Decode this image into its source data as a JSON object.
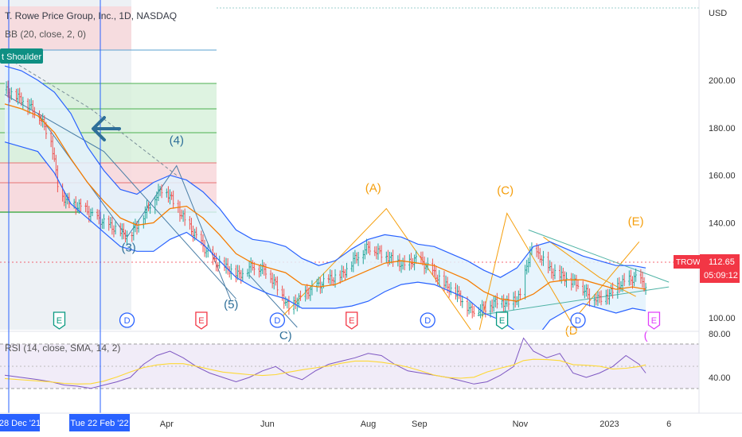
{
  "header": {
    "symbol_title": "T. Rowe Price Group, Inc., 1D, NASDAQ",
    "bb_label": "BB (20, close, 2, 0)",
    "pattern_badge": "t Shoulder"
  },
  "price_axis": {
    "currency": "USD",
    "ticks": [
      {
        "value": 200,
        "label": "200.00"
      },
      {
        "value": 180,
        "label": "180.00"
      },
      {
        "value": 160,
        "label": "160.00"
      },
      {
        "value": 140,
        "label": "140.00"
      },
      {
        "value": 120,
        "label": "120.00"
      },
      {
        "value": 100,
        "label": "100.00"
      }
    ],
    "last_price": {
      "ticker": "TROW",
      "price": "112.65",
      "countdown": "05:09:12"
    }
  },
  "rsi": {
    "label": "RSI (14, close, SMA, 14, 2)",
    "ticks": [
      {
        "value": 80,
        "label": "80.00"
      },
      {
        "value": 40,
        "label": "40.00"
      }
    ]
  },
  "time_axis": {
    "ticks": [
      {
        "label": "Apr",
        "day": 98
      },
      {
        "label": "Jun",
        "day": 159
      },
      {
        "label": "Aug",
        "day": 220
      },
      {
        "label": "Sep",
        "day": 251
      },
      {
        "label": "Nov",
        "day": 312
      },
      {
        "label": "2023",
        "day": 366
      },
      {
        "label": "6",
        "day": 402
      }
    ],
    "highlights": [
      {
        "label": "28 Dec '21",
        "day": 28
      },
      {
        "label": "Tue 22 Feb '22",
        "day": 53
      }
    ]
  },
  "events": [
    {
      "letter": "E",
      "type": "earnings",
      "color": "#089981",
      "day": 33
    },
    {
      "letter": "D",
      "type": "dividend",
      "color": "#2962ff",
      "day": 74
    },
    {
      "letter": "E",
      "type": "earnings",
      "color": "#f23645",
      "day": 119
    },
    {
      "letter": "D",
      "type": "dividend",
      "color": "#2962ff",
      "day": 165
    },
    {
      "letter": "E",
      "type": "earnings",
      "color": "#f23645",
      "day": 210
    },
    {
      "letter": "D",
      "type": "dividend",
      "color": "#2962ff",
      "day": 256
    },
    {
      "letter": "E",
      "type": "earnings",
      "color": "#089981",
      "day": 301
    },
    {
      "letter": "D",
      "type": "dividend",
      "color": "#2962ff",
      "day": 347
    },
    {
      "letter": "E",
      "type": "earnings",
      "color": "#e040fb",
      "day": 393
    }
  ],
  "wave_labels": [
    {
      "text": "(3)",
      "day": 75,
      "price": 128,
      "color": "#2e6f99"
    },
    {
      "text": "(4)",
      "day": 104,
      "price": 173,
      "color": "#2e6f99"
    },
    {
      "text": "(5)",
      "day": 137,
      "price": 104,
      "color": "#2e6f99"
    },
    {
      "text": "C)",
      "day": 170,
      "price": 91,
      "color": "#2e6f99"
    },
    {
      "text": "(A)",
      "day": 223,
      "price": 153,
      "color": "#f59e0b"
    },
    {
      "text": "(C)",
      "day": 303,
      "price": 152,
      "color": "#f59e0b"
    },
    {
      "text": "(D",
      "day": 343,
      "price": 93,
      "color": "#f59e0b"
    },
    {
      "text": "(E)",
      "day": 382,
      "price": 139,
      "color": "#f59e0b"
    },
    {
      "text": "(",
      "day": 388,
      "price": 91,
      "color": "#e040fb"
    }
  ],
  "chart_data": {
    "type": "line",
    "title": "T. Rowe Price Group, Inc., 1D, NASDAQ",
    "xlabel": "",
    "ylabel": "USD",
    "ylim": [
      87,
      220
    ],
    "x_unit": "days",
    "series": [
      {
        "name": "Close",
        "color": "#26a69a",
        "x": [
          0,
          10,
          20,
          28,
          33,
          40,
          48,
          53,
          60,
          68,
          75,
          82,
          90,
          96,
          102,
          110,
          118,
          126,
          134,
          142,
          150,
          158,
          165,
          172,
          180,
          188,
          196,
          204,
          212,
          220,
          228,
          236,
          242,
          250,
          258,
          266,
          274,
          282,
          290,
          298,
          305,
          312,
          318,
          324,
          330,
          336,
          342,
          348,
          354,
          360,
          366,
          372,
          378,
          383,
          388
        ],
        "y": [
          196,
          192,
          186,
          175,
          152,
          148,
          146,
          143,
          140,
          137,
          134,
          141,
          150,
          155,
          149,
          140,
          132,
          124,
          121,
          118,
          122,
          120,
          113,
          104,
          109,
          113,
          116,
          118,
          125,
          130,
          127,
          124,
          122,
          125,
          120,
          114,
          110,
          103,
          104,
          107,
          106,
          109,
          128,
          126,
          120,
          118,
          116,
          114,
          109,
          108,
          110,
          114,
          116,
          117,
          113
        ]
      },
      {
        "name": "BB Basis",
        "color": "#f57c00",
        "x": [
          0,
          10,
          20,
          30,
          40,
          50,
          60,
          70,
          80,
          90,
          100,
          110,
          120,
          130,
          140,
          150,
          160,
          170,
          180,
          190,
          200,
          210,
          220,
          230,
          240,
          250,
          260,
          270,
          280,
          290,
          300,
          310,
          320,
          330,
          340,
          350,
          360,
          370,
          380,
          388
        ],
        "y": [
          190,
          188,
          185,
          178,
          167,
          157,
          149,
          142,
          139,
          140,
          146,
          147,
          142,
          135,
          127,
          123,
          121,
          119,
          114,
          113,
          114,
          117,
          120,
          123,
          124,
          123,
          122,
          119,
          116,
          111,
          108,
          107,
          110,
          115,
          116,
          116,
          114,
          112,
          113,
          112
        ]
      },
      {
        "name": "BB Upper",
        "color": "#2962ff",
        "x": [
          0,
          10,
          20,
          30,
          40,
          50,
          60,
          70,
          80,
          90,
          100,
          110,
          120,
          130,
          140,
          150,
          160,
          170,
          180,
          190,
          200,
          210,
          220,
          230,
          240,
          250,
          260,
          270,
          280,
          290,
          300,
          310,
          320,
          330,
          340,
          350,
          360,
          370,
          380,
          388
        ],
        "y": [
          206,
          204,
          200,
          195,
          186,
          172,
          162,
          154,
          152,
          157,
          160,
          158,
          153,
          146,
          137,
          133,
          132,
          130,
          125,
          122,
          124,
          129,
          133,
          135,
          134,
          131,
          130,
          127,
          124,
          120,
          117,
          121,
          130,
          132,
          129,
          126,
          124,
          122,
          122,
          121
        ]
      },
      {
        "name": "BB Lower",
        "color": "#2962ff",
        "x": [
          0,
          10,
          20,
          30,
          40,
          50,
          60,
          70,
          80,
          90,
          100,
          110,
          120,
          130,
          140,
          150,
          160,
          170,
          180,
          190,
          200,
          210,
          220,
          230,
          240,
          250,
          260,
          270,
          280,
          290,
          300,
          310,
          320,
          330,
          340,
          350,
          360,
          370,
          380,
          388
        ],
        "y": [
          174,
          172,
          170,
          161,
          148,
          142,
          136,
          130,
          128,
          128,
          133,
          136,
          131,
          124,
          117,
          113,
          110,
          108,
          104,
          104,
          104,
          105,
          107,
          111,
          114,
          115,
          114,
          111,
          108,
          102,
          99,
          94,
          90,
          99,
          103,
          106,
          104,
          102,
          104,
          103
        ]
      },
      {
        "name": "RSI",
        "color": "#7e57c2",
        "x": [
          0,
          10,
          20,
          28,
          36,
          44,
          52,
          60,
          68,
          76,
          84,
          92,
          100,
          108,
          116,
          124,
          132,
          140,
          148,
          156,
          164,
          172,
          180,
          188,
          196,
          204,
          212,
          220,
          228,
          236,
          244,
          252,
          260,
          268,
          276,
          284,
          292,
          300,
          308,
          314,
          320,
          328,
          336,
          344,
          352,
          360,
          368,
          376,
          384,
          388
        ],
        "y": [
          42,
          40,
          38,
          36,
          33,
          32,
          30,
          33,
          36,
          40,
          52,
          60,
          64,
          58,
          50,
          44,
          40,
          36,
          40,
          46,
          50,
          42,
          38,
          46,
          52,
          55,
          58,
          62,
          60,
          52,
          46,
          44,
          42,
          40,
          37,
          34,
          36,
          42,
          50,
          76,
          64,
          58,
          62,
          44,
          40,
          44,
          50,
          60,
          52,
          44
        ]
      }
    ]
  },
  "markers": {
    "arrow_icon": "arrow-left-icon",
    "event_icon": "event-badge-icon"
  }
}
